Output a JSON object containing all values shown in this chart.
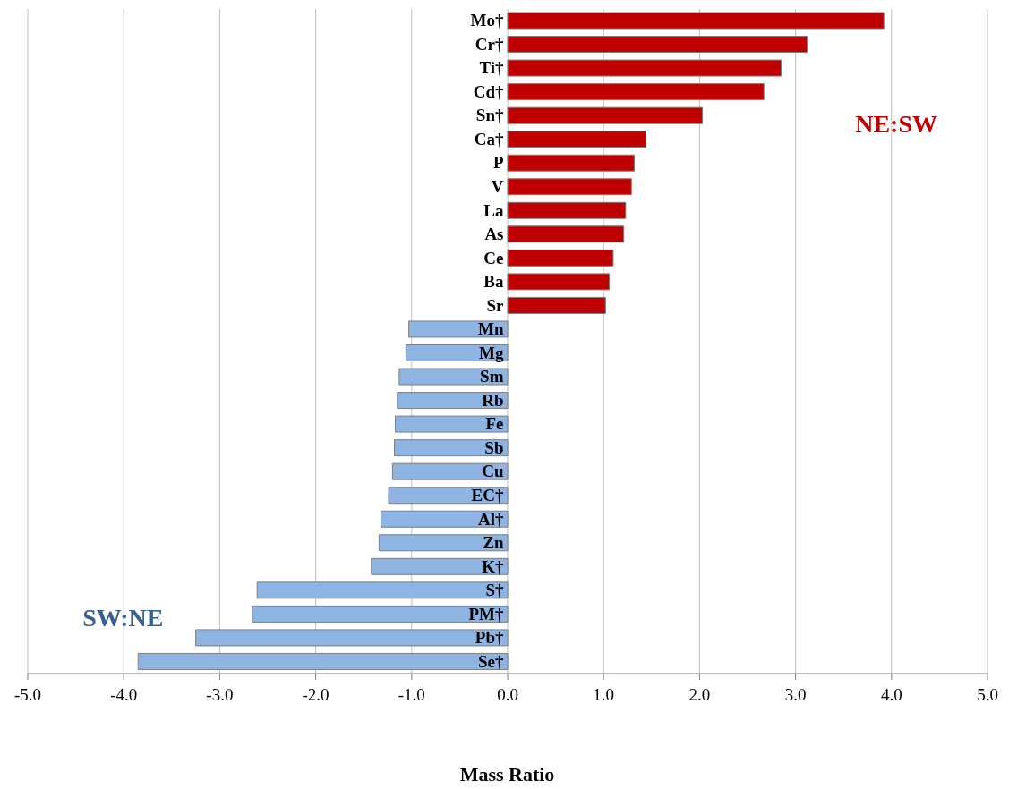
{
  "chart_data": {
    "type": "bar",
    "orientation": "horizontal",
    "stacked": true,
    "xlabel": "Mass Ratio",
    "categories": [
      "Mo†",
      "Cr†",
      "Ti†",
      "Cd†",
      "Sn†",
      "Ca†",
      "P",
      "V",
      "La",
      "As",
      "Ce",
      "Ba",
      "Sr",
      "Mn",
      "Mg",
      "Sm",
      "Rb",
      "Fe",
      "Sb",
      "Cu",
      "EC†",
      "Al†",
      "Zn",
      "K†",
      "S†",
      "PM†",
      "Pb†",
      "Se†"
    ],
    "series": [
      {
        "name": "NE:SW",
        "color": "#c00000",
        "values": [
          3.92,
          3.12,
          2.85,
          2.67,
          2.03,
          1.44,
          1.32,
          1.29,
          1.23,
          1.21,
          1.1,
          1.06,
          1.02,
          null,
          null,
          null,
          null,
          null,
          null,
          null,
          null,
          null,
          null,
          null,
          null,
          null,
          null,
          null
        ]
      },
      {
        "name": "SW:NE",
        "color": "#8db4e2",
        "values": [
          null,
          null,
          null,
          null,
          null,
          null,
          null,
          null,
          null,
          null,
          null,
          null,
          null,
          -1.03,
          -1.06,
          -1.13,
          -1.15,
          -1.17,
          -1.18,
          -1.2,
          -1.24,
          -1.32,
          -1.34,
          -1.42,
          -2.61,
          -2.66,
          -3.25,
          -3.85
        ]
      }
    ],
    "xlim": [
      -5,
      5
    ],
    "xticks": [
      {
        "value": -5,
        "label": "-5.0"
      },
      {
        "value": -4,
        "label": "-4.0"
      },
      {
        "value": -3,
        "label": "-3.0"
      },
      {
        "value": -2,
        "label": "-2.0"
      },
      {
        "value": -1,
        "label": "-1.0"
      },
      {
        "value": 0,
        "label": "0.0"
      },
      {
        "value": 1,
        "label": "1.0"
      },
      {
        "value": 2,
        "label": "2.0"
      },
      {
        "value": 3,
        "label": "3.0"
      },
      {
        "value": 4,
        "label": "4.0"
      },
      {
        "value": 5,
        "label": "5.0"
      }
    ],
    "grid": "x"
  }
}
